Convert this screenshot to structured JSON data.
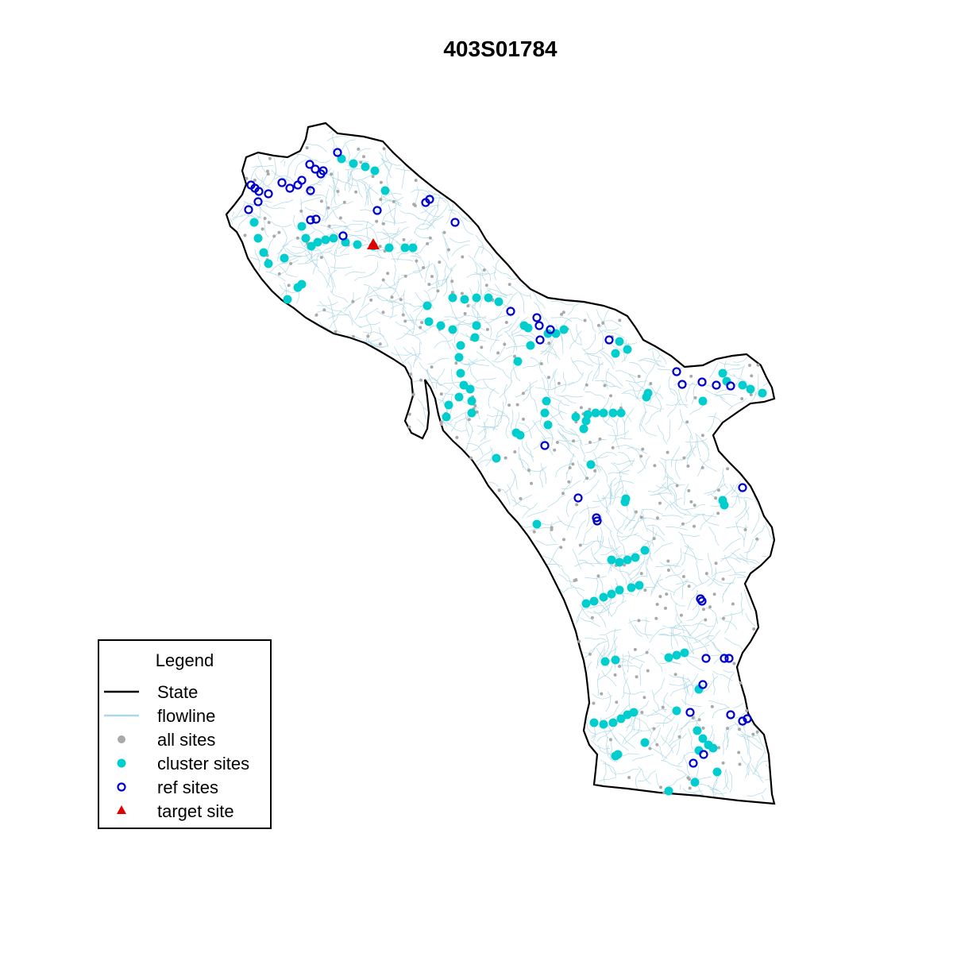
{
  "title": "403S01784",
  "colors": {
    "state": "#000000",
    "flowline": "#add8e6",
    "all_sites": "#a9a9a9",
    "cluster_sites": "#00cdcd",
    "ref_sites": "#0000cd",
    "target_site": "#e00000"
  },
  "legend": {
    "title": "Legend",
    "items": [
      {
        "label": "State",
        "symbol": "black-line"
      },
      {
        "label": "flowline",
        "symbol": "lightblue-line"
      },
      {
        "label": "all sites",
        "symbol": "gray-dot"
      },
      {
        "label": "cluster sites",
        "symbol": "cyan-dot"
      },
      {
        "label": "ref sites",
        "symbol": "blue-open-circle"
      },
      {
        "label": "target site",
        "symbol": "red-triangle"
      }
    ]
  }
}
